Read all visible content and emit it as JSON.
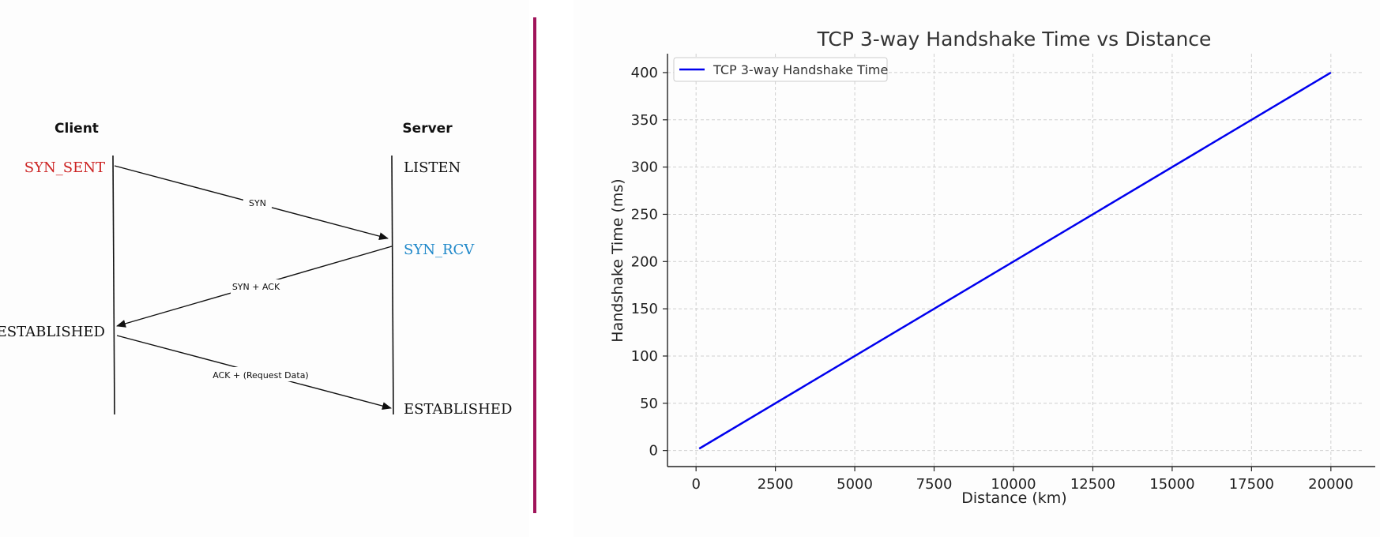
{
  "diagram": {
    "client_label": "Client",
    "server_label": "Server",
    "client_states": {
      "syn_sent": "SYN_SENT",
      "established": "ESTABLISHED"
    },
    "server_states": {
      "listen": "LISTEN",
      "syn_rcv": "SYN_RCV",
      "established": "ESTABLISHED"
    },
    "messages": {
      "syn": "SYN",
      "syn_ack": "SYN + ACK",
      "ack": "ACK + (Request Data)"
    },
    "colors": {
      "syn_sent": "#cc2222",
      "syn_rcv": "#1f88c9",
      "divider": "#a0145a"
    }
  },
  "chart_data": {
    "type": "line",
    "title": "TCP 3-way Handshake Time vs Distance",
    "xlabel": "Distance (km)",
    "ylabel": "Handshake Time (ms)",
    "xlim": [
      -900,
      21000
    ],
    "ylim": [
      -17,
      420
    ],
    "xticks": [
      0,
      2500,
      5000,
      7500,
      10000,
      12500,
      15000,
      17500,
      20000
    ],
    "yticks": [
      0,
      50,
      100,
      150,
      200,
      250,
      300,
      350,
      400
    ],
    "grid": true,
    "legend_position": "top-left",
    "series": [
      {
        "name": "TCP 3-way Handshake Time",
        "color": "#0000ee",
        "x": [
          100,
          20000
        ],
        "y": [
          2,
          400
        ]
      }
    ]
  }
}
